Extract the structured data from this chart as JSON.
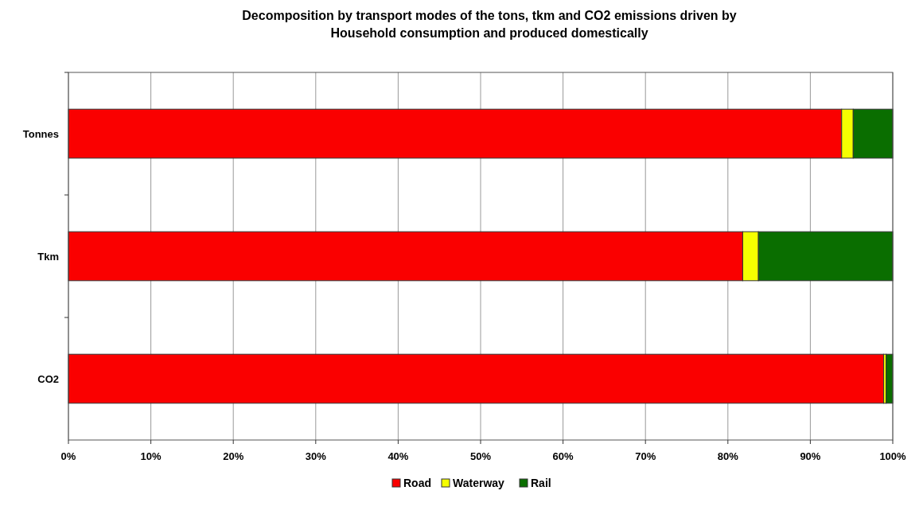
{
  "chart_data": {
    "type": "bar",
    "orientation": "horizontal",
    "stacked": true,
    "title": "Decomposition by transport modes of the tons, tkm and CO2 emissions driven by\nHousehold consumption and produced domestically",
    "categories": [
      "Tonnes",
      "Tkm",
      "CO2"
    ],
    "series": [
      {
        "name": "Road",
        "color": "#fa0000",
        "values": [
          93.8,
          81.8,
          98.9
        ]
      },
      {
        "name": "Waterway",
        "color": "#f5ff00",
        "values": [
          1.4,
          1.9,
          0.3
        ]
      },
      {
        "name": "Rail",
        "color": "#0a6e00",
        "values": [
          4.8,
          16.3,
          0.8
        ]
      }
    ],
    "xlim": [
      0,
      100
    ],
    "xticks": [
      {
        "value": 0,
        "label": "0%"
      },
      {
        "value": 10,
        "label": "10%"
      },
      {
        "value": 20,
        "label": "20%"
      },
      {
        "value": 30,
        "label": "30%"
      },
      {
        "value": 40,
        "label": "40%"
      },
      {
        "value": 50,
        "label": "50%"
      },
      {
        "value": 60,
        "label": "60%"
      },
      {
        "value": 70,
        "label": "70%"
      },
      {
        "value": 80,
        "label": "80%"
      },
      {
        "value": 90,
        "label": "90%"
      },
      {
        "value": 100,
        "label": "100%"
      }
    ],
    "grid": "x",
    "legend": "bottom"
  }
}
